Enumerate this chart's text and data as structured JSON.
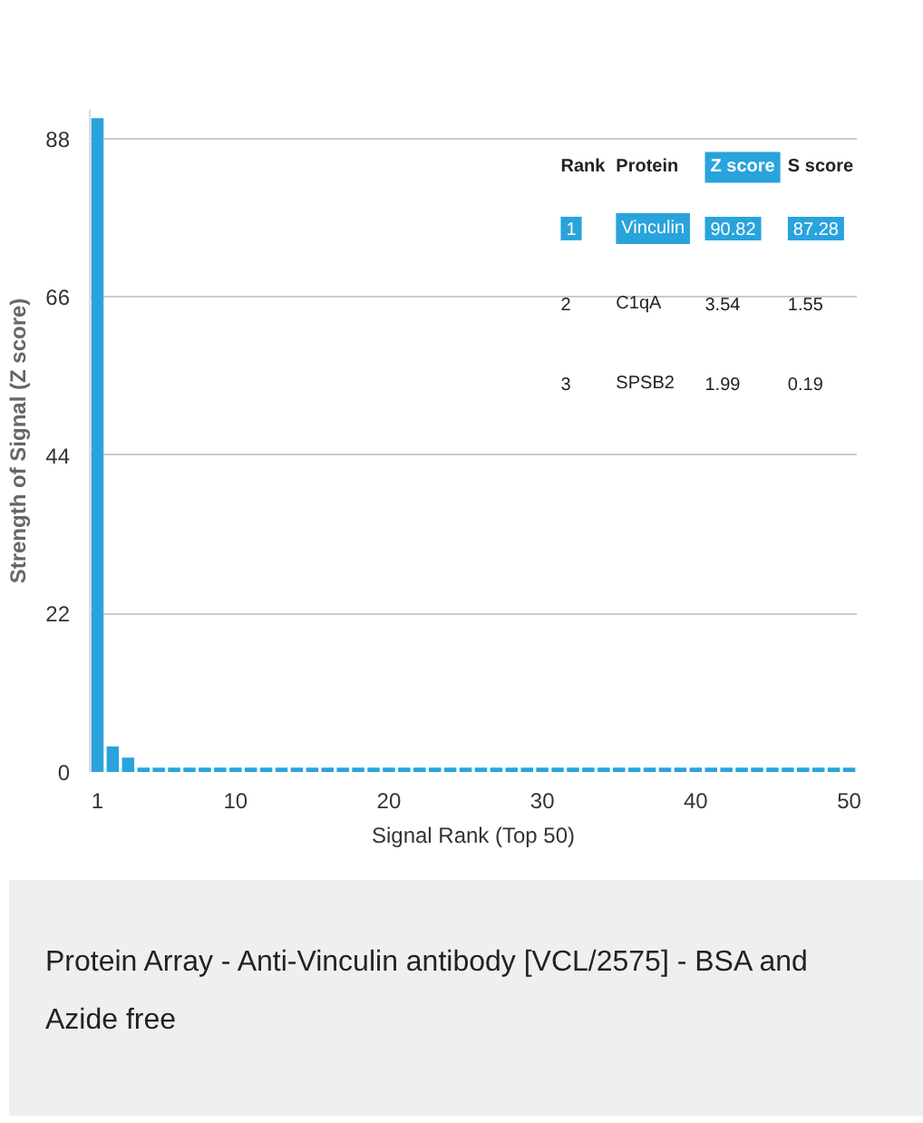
{
  "chart_data": {
    "type": "bar",
    "color": "#29a3dc",
    "x": [
      1,
      2,
      3,
      4,
      5,
      6,
      7,
      8,
      9,
      10,
      11,
      12,
      13,
      14,
      15,
      16,
      17,
      18,
      19,
      20,
      21,
      22,
      23,
      24,
      25,
      26,
      27,
      28,
      29,
      30,
      31,
      32,
      33,
      34,
      35,
      36,
      37,
      38,
      39,
      40,
      41,
      42,
      43,
      44,
      45,
      46,
      47,
      48,
      49,
      50
    ],
    "values": [
      90.82,
      3.54,
      1.99,
      0.6,
      0.6,
      0.6,
      0.6,
      0.6,
      0.6,
      0.6,
      0.6,
      0.6,
      0.6,
      0.6,
      0.6,
      0.6,
      0.6,
      0.6,
      0.6,
      0.6,
      0.6,
      0.6,
      0.6,
      0.6,
      0.6,
      0.6,
      0.6,
      0.6,
      0.6,
      0.6,
      0.6,
      0.6,
      0.6,
      0.6,
      0.6,
      0.6,
      0.6,
      0.6,
      0.6,
      0.6,
      0.6,
      0.6,
      0.6,
      0.6,
      0.6,
      0.6,
      0.6,
      0.6,
      0.6,
      0.6
    ],
    "xlim": [
      0.5,
      50.5
    ],
    "ylim": [
      0,
      92
    ],
    "xticks": [
      1,
      10,
      20,
      30,
      40,
      50
    ],
    "yticks": [
      0,
      22,
      44,
      66,
      88
    ],
    "grid": "y",
    "xlabel": "Signal Rank (Top 50)",
    "ylabel": "Strength of Signal (Z score)",
    "annotations": [
      "Rank",
      "Protein",
      "Z score",
      "S score",
      "1",
      "Vinculin",
      "90.82",
      "87.28",
      "2",
      "C1qA",
      "3.54",
      "1.55",
      "3",
      "SPSB2",
      "1.99",
      "0.19",
      "Protein Array - Anti-Vinculin antibody [VCL/2575] - BSA and Azide free"
    ]
  }
}
